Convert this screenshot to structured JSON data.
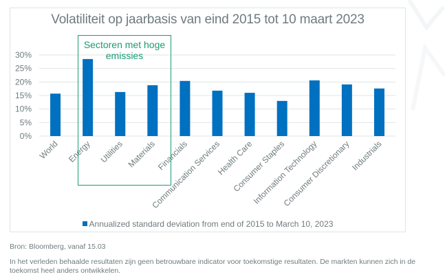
{
  "colors": {
    "bar": "#0070c0",
    "highlight": "#1a9b74",
    "text": "#6e7b7d",
    "gridline": "#dfe4e4"
  },
  "highlight": {
    "label": "Sectoren met hoge emissies",
    "categories": [
      "Energy",
      "Utilities",
      "Materials"
    ]
  },
  "chart_data": {
    "type": "bar",
    "title": "Volatiliteit op jaarbasis van eind 2015 tot 10 maart 2023",
    "xlabel": "",
    "ylabel": "",
    "categories": [
      "World",
      "Energy",
      "Utilities",
      "Materials",
      "Financials",
      "Communication Services",
      "Health Care",
      "Consumer Staples",
      "Information Technology",
      "Consumer Discretionary",
      "Industrials"
    ],
    "series": [
      {
        "name": "Annualized standard deviation from end of 2015 to March 10, 2023",
        "values": [
          15.7,
          28.5,
          16.3,
          18.8,
          20.4,
          16.8,
          16.0,
          13.0,
          20.6,
          19.1,
          17.6
        ]
      }
    ],
    "ylim": [
      0,
      30
    ],
    "yticks": [
      0,
      5,
      10,
      15,
      20,
      25,
      30
    ],
    "ytick_labels": [
      "0%",
      "5%",
      "10%",
      "15%",
      "20%",
      "25%",
      "30%"
    ],
    "grid": true,
    "legend_position": "bottom"
  },
  "footer": {
    "source": "Bron: Bloomberg, vanaf 15.03",
    "disclaimer": "In het verleden behaalde resultaten zijn geen betrouwbare indicator voor toekomstige resultaten. De markten kunnen zich in de toekomst heel anders ontwikkelen."
  }
}
